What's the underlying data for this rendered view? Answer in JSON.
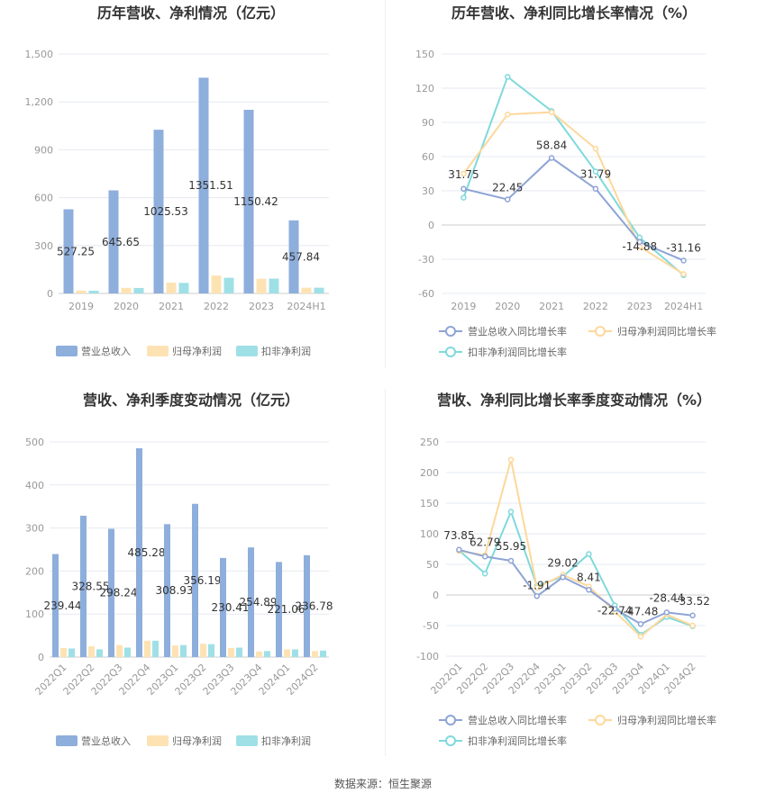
{
  "source": "数据来源：恒生聚源",
  "charts": {
    "annual_bar": {
      "title": "历年营收、净利情况（亿元）",
      "legend": [
        "营业总收入",
        "归母净利润",
        "扣非净利润"
      ]
    },
    "annual_line": {
      "title": "历年营收、净利同比增长率情况（%）",
      "legend": [
        "营业总收入同比增长率",
        "归母净利润同比增长率",
        "扣非净利润同比增长率"
      ]
    },
    "quarter_bar": {
      "title": "营收、净利季度变动情况（亿元）",
      "legend": [
        "营业总收入",
        "归母净利润",
        "扣非净利润"
      ]
    },
    "quarter_line": {
      "title": "营收、净利同比增长率季度变动情况（%）",
      "legend": [
        "营业总收入同比增长率",
        "归母净利润同比增长率",
        "扣非净利润同比增长率"
      ]
    }
  },
  "colors": {
    "revenue": "#8eaedc",
    "parent": "#fde3b4",
    "deducted": "#9fe0e6",
    "line_rev": "#8ea4d6",
    "line_parent": "#fdd89b",
    "line_ded": "#7fd9dc"
  },
  "chart_data": [
    {
      "type": "bar",
      "title": "历年营收、净利情况（亿元）",
      "categories": [
        "2019",
        "2020",
        "2021",
        "2022",
        "2023",
        "2024H1"
      ],
      "series": [
        {
          "name": "营业总收入",
          "values": [
            527.25,
            645.65,
            1025.53,
            1351.51,
            1150.42,
            457.84
          ]
        },
        {
          "name": "归母净利润",
          "values": [
            18,
            35,
            68,
            112,
            92,
            36
          ]
        },
        {
          "name": "扣非净利润",
          "values": [
            17,
            34,
            66,
            98,
            93,
            36
          ]
        }
      ],
      "ylim": [
        0,
        1500
      ],
      "yticks": [
        0,
        300,
        600,
        900,
        1200,
        1500
      ],
      "ytick_labels": [
        "0",
        "300",
        "600",
        "900",
        "1,200",
        "1,500"
      ],
      "data_labels": [
        "527.25",
        "645.65",
        "1025.53",
        "1351.51",
        "1150.42",
        "457.84"
      ]
    },
    {
      "type": "line",
      "title": "历年营收、净利同比增长率情况（%）",
      "categories": [
        "2019",
        "2020",
        "2021",
        "2022",
        "2023",
        "2024H1"
      ],
      "series": [
        {
          "name": "营业总收入同比增长率",
          "values": [
            31.75,
            22.45,
            58.84,
            31.79,
            -14.88,
            -31.16
          ]
        },
        {
          "name": "归母净利润同比增长率",
          "values": [
            45,
            97,
            99,
            67,
            -19,
            -43
          ]
        },
        {
          "name": "扣非净利润同比增长率",
          "values": [
            24,
            130,
            100,
            47,
            -11,
            -44
          ]
        }
      ],
      "ylim": [
        -60,
        150
      ],
      "yticks": [
        -60,
        -30,
        0,
        30,
        60,
        90,
        120,
        150
      ],
      "data_labels": [
        "31.75",
        "22.45",
        "58.84",
        "31.79",
        "-14.88",
        "-31.16"
      ]
    },
    {
      "type": "bar",
      "title": "营收、净利季度变动情况（亿元）",
      "categories": [
        "2022Q1",
        "2022Q2",
        "2022Q3",
        "2022Q4",
        "2023Q1",
        "2023Q2",
        "2023Q3",
        "2023Q4",
        "2024Q1",
        "2024Q2"
      ],
      "series": [
        {
          "name": "营业总收入",
          "values": [
            239.44,
            328.55,
            298.24,
            485.28,
            308.93,
            356.19,
            230.41,
            254.89,
            221.06,
            236.78
          ]
        },
        {
          "name": "归母净利润",
          "values": [
            21,
            25,
            28,
            38,
            27,
            31,
            21,
            13,
            18,
            14
          ]
        },
        {
          "name": "扣非净利润",
          "values": [
            20,
            18,
            22,
            38,
            28,
            30,
            22,
            14,
            18,
            15
          ]
        }
      ],
      "ylim": [
        0,
        500
      ],
      "yticks": [
        0,
        100,
        200,
        300,
        400,
        500
      ],
      "data_labels": [
        "239.44",
        "328.55",
        "298.24",
        "485.28",
        "308.93",
        "356.19",
        "230.41",
        "254.89",
        "221.06",
        "236.78"
      ]
    },
    {
      "type": "line",
      "title": "营收、净利同比增长率季度变动情况（%）",
      "categories": [
        "2022Q1",
        "2022Q2",
        "2022Q3",
        "2022Q4",
        "2023Q1",
        "2023Q2",
        "2023Q3",
        "2023Q4",
        "2024Q1",
        "2024Q2"
      ],
      "series": [
        {
          "name": "营业总收入同比增长率",
          "values": [
            73.85,
            62.79,
            55.95,
            -1.91,
            29.02,
            8.41,
            -22.74,
            -47.48,
            -28.44,
            -33.52
          ]
        },
        {
          "name": "归母净利润同比增长率",
          "values": [
            72,
            65,
            221,
            12,
            33,
            14,
            -27,
            -68,
            -32,
            -50
          ]
        },
        {
          "name": "扣非净利润同比增长率",
          "values": [
            73,
            35,
            136,
            15,
            30,
            67,
            -17,
            -65,
            -36,
            -51
          ]
        }
      ],
      "ylim": [
        -100,
        250
      ],
      "yticks": [
        -100,
        -50,
        0,
        50,
        100,
        150,
        200,
        250
      ],
      "data_labels": [
        "73.85",
        "62.79",
        "55.95",
        "-1.91",
        "29.02",
        "8.41",
        "-22.74",
        "-47.48",
        "-28.44",
        "-33.52"
      ]
    }
  ]
}
